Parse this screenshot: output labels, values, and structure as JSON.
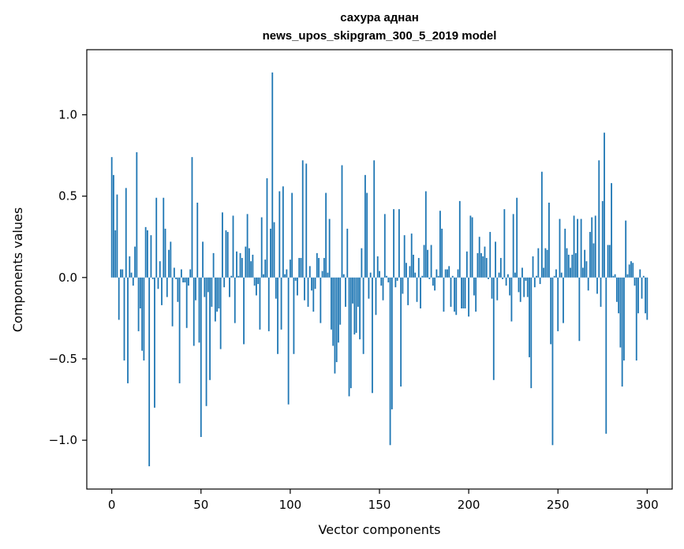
{
  "chart_data": {
    "type": "bar",
    "title_lines": [
      "сахура аднан",
      "news_upos_skipgram_300_5_2019 model"
    ],
    "xlabel": "Vector components",
    "ylabel": "Components values",
    "xlim": [
      -14,
      314
    ],
    "ylim": [
      -1.3,
      1.4
    ],
    "xticks": [
      0,
      50,
      100,
      150,
      200,
      250,
      300
    ],
    "xtick_labels": [
      "0",
      "50",
      "100",
      "150",
      "200",
      "250",
      "300"
    ],
    "yticks": [
      -1.0,
      -0.5,
      0.0,
      0.5,
      1.0
    ],
    "ytick_labels": [
      "−1.0",
      "−0.5",
      "0.0",
      "0.5",
      "1.0"
    ],
    "bar_color": "#1f77b4",
    "grid": false,
    "x_start": 0,
    "values": [
      0.74,
      0.63,
      0.29,
      0.51,
      -0.26,
      0.05,
      0.05,
      -0.51,
      0.55,
      -0.65,
      0.13,
      0.03,
      -0.05,
      0.19,
      0.77,
      -0.33,
      -0.19,
      -0.45,
      -0.51,
      0.31,
      0.29,
      -1.16,
      0.26,
      -0.01,
      -0.8,
      0.49,
      -0.07,
      0.1,
      -0.17,
      0.49,
      0.3,
      -0.12,
      0.17,
      0.22,
      -0.3,
      0.06,
      -0.01,
      -0.15,
      -0.65,
      0.05,
      -0.03,
      -0.03,
      -0.31,
      -0.05,
      0.05,
      0.74,
      -0.42,
      -0.14,
      0.46,
      -0.4,
      -0.98,
      0.22,
      -0.12,
      -0.79,
      -0.09,
      -0.63,
      -0.18,
      0.15,
      -0.27,
      -0.21,
      -0.19,
      -0.44,
      0.4,
      -0.06,
      0.29,
      0.28,
      -0.12,
      0.01,
      0.38,
      -0.28,
      0.16,
      0.01,
      0.15,
      0.12,
      -0.41,
      0.19,
      0.39,
      0.18,
      0.1,
      0.14,
      -0.05,
      -0.11,
      -0.04,
      -0.32,
      0.37,
      0.02,
      0.11,
      0.61,
      -0.33,
      0.3,
      1.26,
      0.34,
      -0.13,
      -0.47,
      0.53,
      -0.32,
      0.56,
      0.02,
      0.05,
      -0.78,
      0.11,
      0.52,
      -0.47,
      -0.02,
      -0.11,
      0.12,
      0.12,
      0.72,
      -0.14,
      0.7,
      -0.18,
      0.07,
      -0.08,
      -0.21,
      -0.07,
      0.15,
      0.12,
      -0.28,
      0.04,
      0.12,
      0.52,
      0.03,
      0.36,
      -0.32,
      -0.42,
      -0.59,
      -0.52,
      -0.4,
      -0.29,
      0.69,
      0.02,
      -0.18,
      0.3,
      -0.73,
      -0.68,
      -0.16,
      -0.35,
      -0.34,
      -0.18,
      -0.38,
      0.18,
      -0.47,
      0.63,
      0.52,
      -0.13,
      0.03,
      -0.71,
      0.72,
      -0.23,
      0.13,
      0.04,
      -0.05,
      -0.14,
      0.39,
      0.01,
      -0.03,
      -1.03,
      -0.81,
      0.42,
      -0.06,
      -0.02,
      0.42,
      -0.67,
      -0.1,
      0.26,
      0.09,
      -0.17,
      0.07,
      0.27,
      0.14,
      0.03,
      -0.15,
      0.12,
      -0.19,
      0.01,
      0.2,
      0.53,
      0.17,
      -0.01,
      0.2,
      -0.05,
      -0.08,
      0.05,
      0.01,
      0.41,
      0.3,
      -0.21,
      0.05,
      0.05,
      0.07,
      -0.18,
      0.01,
      -0.21,
      -0.23,
      0.05,
      0.47,
      -0.19,
      -0.19,
      -0.19,
      0.16,
      -0.24,
      0.38,
      0.37,
      -0.11,
      -0.21,
      0.15,
      0.25,
      0.15,
      0.13,
      0.19,
      0.12,
      -0.01,
      0.28,
      -0.13,
      -0.63,
      0.22,
      -0.14,
      0.03,
      0.12,
      -0.01,
      0.42,
      -0.05,
      0.02,
      -0.11,
      -0.27,
      0.39,
      0.03,
      0.49,
      -0.09,
      -0.15,
      0.06,
      -0.12,
      -0.02,
      -0.12,
      -0.49,
      -0.68,
      0.13,
      -0.06,
      0.01,
      0.18,
      -0.04,
      0.65,
      0.06,
      0.18,
      0.17,
      0.46,
      -0.41,
      -1.03,
      0.01,
      0.05,
      -0.33,
      0.36,
      0.03,
      -0.28,
      0.3,
      0.18,
      0.14,
      0.06,
      0.14,
      0.38,
      0.15,
      0.36,
      -0.39,
      0.36,
      0.06,
      0.17,
      0.1,
      -0.08,
      0.28,
      0.37,
      0.21,
      0.38,
      -0.1,
      0.72,
      -0.18,
      0.47,
      0.89,
      -0.96,
      0.2,
      0.2,
      0.58,
      0.01,
      0.02,
      -0.15,
      -0.22,
      -0.43,
      -0.67,
      -0.51,
      0.35,
      0.02,
      0.08,
      0.1,
      0.09,
      -0.05,
      -0.51,
      -0.22,
      0.05,
      -0.13,
      0.01,
      -0.22,
      -0.26
    ]
  }
}
